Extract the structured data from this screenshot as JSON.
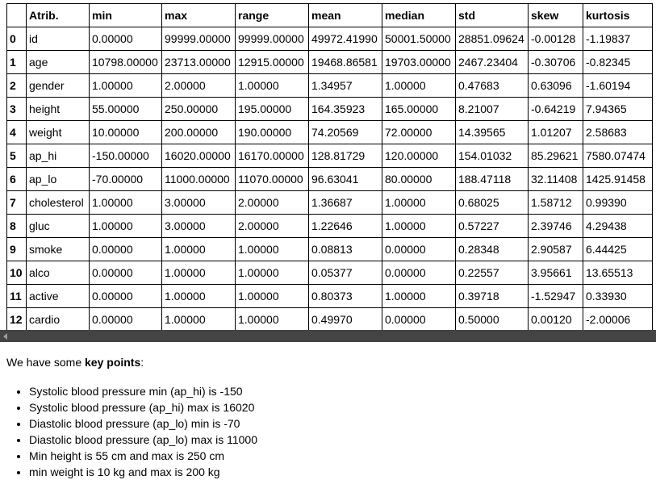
{
  "table": {
    "columns": [
      "",
      "Atrib.",
      "min",
      "max",
      "range",
      "mean",
      "median",
      "std",
      "skew",
      "kurtosis"
    ],
    "rows": [
      {
        "index": "0",
        "cells": [
          "id",
          "0.00000",
          "99999.00000",
          "99999.00000",
          "49972.41990",
          "50001.50000",
          "28851.09624",
          "-0.00128",
          "-1.19837"
        ]
      },
      {
        "index": "1",
        "cells": [
          "age",
          "10798.00000",
          "23713.00000",
          "12915.00000",
          "19468.86581",
          "19703.00000",
          "2467.23404",
          "-0.30706",
          "-0.82345"
        ]
      },
      {
        "index": "2",
        "cells": [
          "gender",
          "1.00000",
          "2.00000",
          "1.00000",
          "1.34957",
          "1.00000",
          "0.47683",
          "0.63096",
          "-1.60194"
        ]
      },
      {
        "index": "3",
        "cells": [
          "height",
          "55.00000",
          "250.00000",
          "195.00000",
          "164.35923",
          "165.00000",
          "8.21007",
          "-0.64219",
          "7.94365"
        ]
      },
      {
        "index": "4",
        "cells": [
          "weight",
          "10.00000",
          "200.00000",
          "190.00000",
          "74.20569",
          "72.00000",
          "14.39565",
          "1.01207",
          "2.58683"
        ]
      },
      {
        "index": "5",
        "cells": [
          "ap_hi",
          "-150.00000",
          "16020.00000",
          "16170.00000",
          "128.81729",
          "120.00000",
          "154.01032",
          "85.29621",
          "7580.07474"
        ]
      },
      {
        "index": "6",
        "cells": [
          "ap_lo",
          "-70.00000",
          "11000.00000",
          "11070.00000",
          "96.63041",
          "80.00000",
          "188.47118",
          "32.11408",
          "1425.91458"
        ]
      },
      {
        "index": "7",
        "cells": [
          "cholesterol",
          "1.00000",
          "3.00000",
          "2.00000",
          "1.36687",
          "1.00000",
          "0.68025",
          "1.58712",
          "0.99390"
        ]
      },
      {
        "index": "8",
        "cells": [
          "gluc",
          "1.00000",
          "3.00000",
          "2.00000",
          "1.22646",
          "1.00000",
          "0.57227",
          "2.39746",
          "4.29438"
        ]
      },
      {
        "index": "9",
        "cells": [
          "smoke",
          "0.00000",
          "1.00000",
          "1.00000",
          "0.08813",
          "0.00000",
          "0.28348",
          "2.90587",
          "6.44425"
        ]
      },
      {
        "index": "10",
        "cells": [
          "alco",
          "0.00000",
          "1.00000",
          "1.00000",
          "0.05377",
          "0.00000",
          "0.22557",
          "3.95661",
          "13.65513"
        ]
      },
      {
        "index": "11",
        "cells": [
          "active",
          "0.00000",
          "1.00000",
          "1.00000",
          "0.80373",
          "1.00000",
          "0.39718",
          "-1.52947",
          "0.33930"
        ]
      },
      {
        "index": "12",
        "cells": [
          "cardio",
          "0.00000",
          "1.00000",
          "1.00000",
          "0.49970",
          "0.00000",
          "0.50000",
          "0.00120",
          "-2.00006"
        ]
      }
    ]
  },
  "scrollbar": {
    "left_arrow_icon": "triangle-left-icon"
  },
  "notes": {
    "intro_prefix": "We have some ",
    "intro_bold": "key points",
    "intro_suffix": ":",
    "points": [
      "Systolic blood pressure min (ap_hi) is -150",
      "Systolic blood pressure (ap_hi) max is 16020",
      "Diastolic blood pressure (ap_lo) min is -70",
      "Diastolic blood pressure (ap_lo) max is 11000",
      "Min height is 55 cm and max is 250 cm",
      "min weight is 10 kg and max is 200 kg"
    ]
  }
}
